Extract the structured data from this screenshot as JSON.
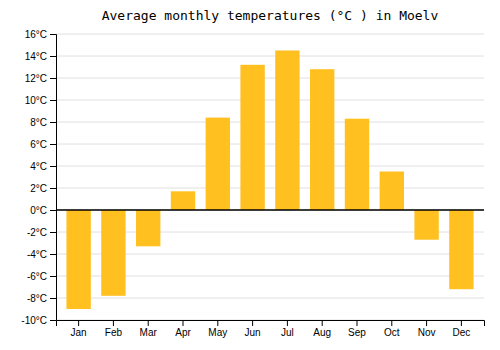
{
  "chart_data": {
    "type": "bar",
    "title": "Average monthly temperatures (°C ) in Moelv",
    "categories": [
      "Jan",
      "Feb",
      "Mar",
      "Apr",
      "May",
      "Jun",
      "Jul",
      "Aug",
      "Sep",
      "Oct",
      "Nov",
      "Dec"
    ],
    "values": [
      -9.0,
      -7.8,
      -3.3,
      1.7,
      8.4,
      13.2,
      14.5,
      12.8,
      8.3,
      3.5,
      -2.7,
      -7.2
    ],
    "color": "#FFC020",
    "ylim": [
      -10,
      16
    ],
    "yticks": [
      {
        "value": -10,
        "label": "-10°C"
      },
      {
        "value": -8,
        "label": "-8°C"
      },
      {
        "value": -6,
        "label": "-6°C"
      },
      {
        "value": -4,
        "label": "-4°C"
      },
      {
        "value": -2,
        "label": "-2°C"
      },
      {
        "value": 0,
        "label": "0°C"
      },
      {
        "value": 2,
        "label": "2°C"
      },
      {
        "value": 4,
        "label": "4°C"
      },
      {
        "value": 6,
        "label": "6°C"
      },
      {
        "value": 8,
        "label": "8°C"
      },
      {
        "value": 10,
        "label": "10°C"
      },
      {
        "value": 12,
        "label": "12°C"
      },
      {
        "value": 14,
        "label": "14°C"
      },
      {
        "value": 16,
        "label": "16°C"
      }
    ],
    "grid": true
  }
}
